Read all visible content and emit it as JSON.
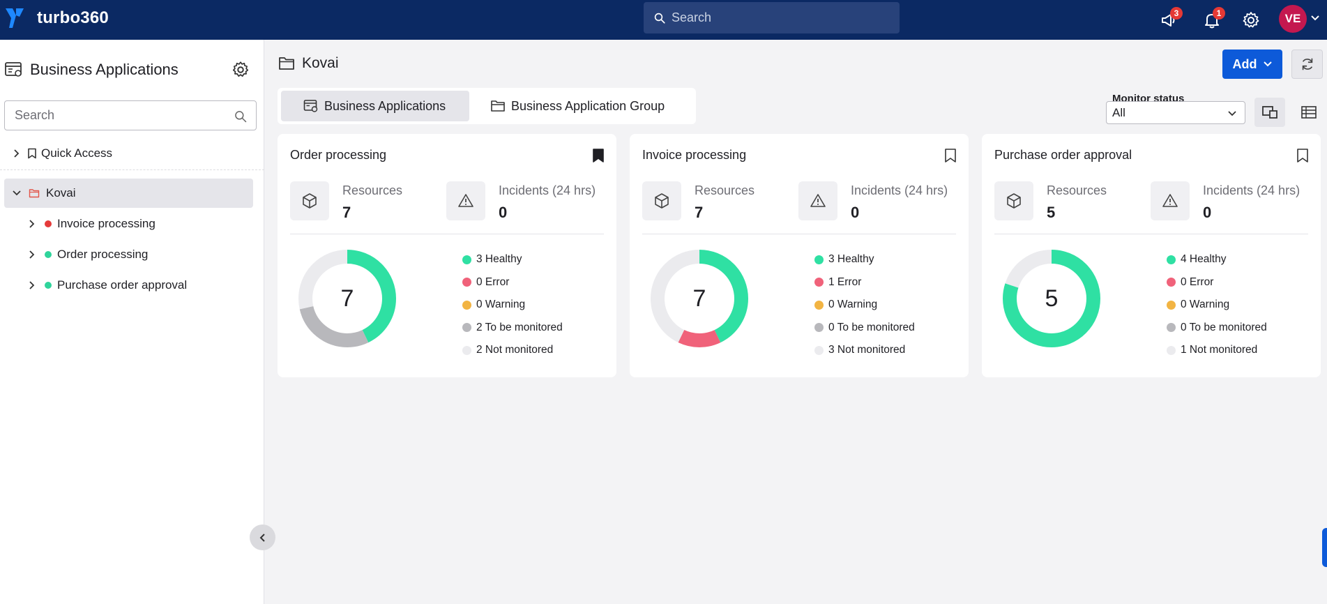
{
  "topbar": {
    "brand": "turbo360",
    "search_placeholder": "Search",
    "announcements_count": "3",
    "notifications_count": "1",
    "avatar_initials": "VE"
  },
  "sidebar": {
    "title": "Business Applications",
    "search_placeholder": "Search",
    "quick_access": "Quick Access",
    "root": "Kovai",
    "items": [
      {
        "label": "Invoice processing",
        "status_color": "#e53b3b"
      },
      {
        "label": "Order processing",
        "status_color": "#2fd49b"
      },
      {
        "label": "Purchase order approval",
        "status_color": "#2fd49b"
      }
    ]
  },
  "main": {
    "title": "Kovai",
    "add_label": "Add",
    "tabs": [
      "Business Applications",
      "Business Application Group"
    ],
    "monitor_status": {
      "label": "Monitor status",
      "value": "All"
    }
  },
  "legend_colors": {
    "healthy": "#2fe0a3",
    "error": "#f0627a",
    "warning": "#f2b443",
    "to_be_monitored": "#b8b8bc",
    "not_monitored": "#ebebee"
  },
  "cards": [
    {
      "title": "Order processing",
      "bookmarked": true,
      "resources_label": "Resources",
      "resources": "7",
      "incidents_label": "Incidents (24 hrs)",
      "incidents": "0",
      "total": "7",
      "healthy": 3,
      "error": 0,
      "warning": 0,
      "to_be_monitored": 2,
      "not_monitored": 2,
      "legend": [
        "3 Healthy",
        "0 Error",
        "0 Warning",
        "2 To be monitored",
        "2 Not monitored"
      ]
    },
    {
      "title": "Invoice processing",
      "bookmarked": false,
      "resources_label": "Resources",
      "resources": "7",
      "incidents_label": "Incidents (24 hrs)",
      "incidents": "0",
      "total": "7",
      "healthy": 3,
      "error": 1,
      "warning": 0,
      "to_be_monitored": 0,
      "not_monitored": 3,
      "legend": [
        "3 Healthy",
        "1 Error",
        "0 Warning",
        "0 To be monitored",
        "3 Not monitored"
      ]
    },
    {
      "title": "Purchase order approval",
      "bookmarked": false,
      "resources_label": "Resources",
      "resources": "5",
      "incidents_label": "Incidents (24 hrs)",
      "incidents": "0",
      "total": "5",
      "healthy": 4,
      "error": 0,
      "warning": 0,
      "to_be_monitored": 0,
      "not_monitored": 1,
      "legend": [
        "4 Healthy",
        "0 Error",
        "0 Warning",
        "0 To be monitored",
        "1 Not monitored"
      ]
    }
  ]
}
